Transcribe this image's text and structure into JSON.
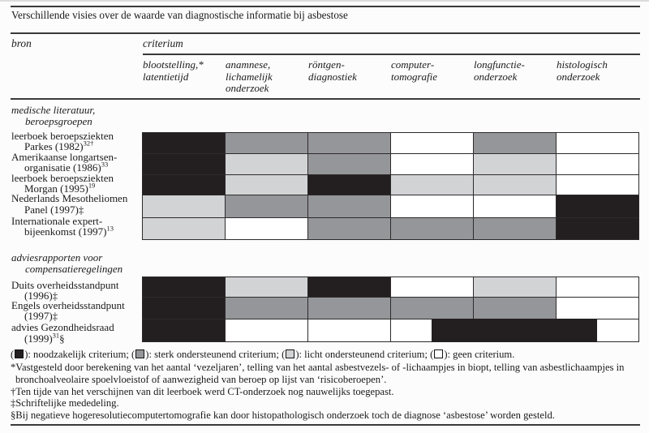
{
  "title": "Verschillende visies over de waarde van diagnostische informatie bij asbestose",
  "colors": {
    "black": "#231f20",
    "dark": "#95969a",
    "light": "#d2d3d5",
    "white": "#ffffff",
    "rule": "#3a3a3a"
  },
  "header": {
    "bron": "bron",
    "criterium": "criterium"
  },
  "table": {
    "columns": [
      {
        "lines": [
          "blootstelling,*",
          "latentietijd"
        ]
      },
      {
        "lines": [
          "anamnese,",
          "lichamelijk",
          "onderzoek"
        ]
      },
      {
        "lines": [
          "röntgen-",
          "diagnostiek"
        ]
      },
      {
        "lines": [
          "computer-",
          "tomografie"
        ]
      },
      {
        "lines": [
          "longfunctie-",
          "onderzoek"
        ]
      },
      {
        "lines": [
          "histologisch",
          "onderzoek"
        ]
      }
    ],
    "groups": [
      {
        "title_lines": [
          "medische literatuur,",
          "beroepsgroepen"
        ],
        "rows": [
          {
            "label_line1": "leerboek beroepsziekten",
            "label_line2": [
              [
                "Parkes (1982)",
                0
              ],
              [
                "32†",
                1
              ]
            ],
            "cells": [
              "black",
              "dark",
              "dark",
              "white",
              "dark",
              "white"
            ]
          },
          {
            "label_line1": "Amerikaanse longartsen-",
            "label_line2": [
              [
                "organisatie (1986)",
                0
              ],
              [
                "33",
                1
              ]
            ],
            "cells": [
              "black",
              "light",
              "dark",
              "white",
              "light",
              "white"
            ]
          },
          {
            "label_line1": "leerboek beroepsziekten",
            "label_line2": [
              [
                "Morgan (1995)",
                0
              ],
              [
                "19",
                1
              ]
            ],
            "cells": [
              "black",
              "light",
              "black",
              "light",
              "light",
              "white"
            ]
          },
          {
            "label_line1": "Nederlands Mesotheliomen",
            "label_line2": [
              [
                "Panel (1997)‡",
                0
              ]
            ],
            "cells": [
              "light",
              "dark",
              "dark",
              "white",
              "white",
              "black"
            ]
          },
          {
            "label_line1": "Internationale expert-",
            "label_line2": [
              [
                "bijeenkomst (1997)",
                0
              ],
              [
                "13",
                1
              ]
            ],
            "cells": [
              "light",
              "white",
              "dark",
              "dark",
              "dark",
              "black"
            ]
          }
        ]
      },
      {
        "title_lines": [
          "adviesrapporten voor",
          "compensatieregelingen"
        ],
        "rows": [
          {
            "label_line1": "Duits overheidsstandpunt",
            "label_line2": [
              [
                "(1996)‡",
                0
              ]
            ],
            "cells": [
              "black",
              "light",
              "black",
              "white",
              "light",
              "white"
            ]
          },
          {
            "label_line1": "Engels overheidsstandpunt",
            "label_line2": [
              [
                "(1997)‡",
                0
              ]
            ],
            "cells": [
              "black",
              "dark",
              "dark",
              "dark",
              "dark",
              "white"
            ]
          },
          {
            "label_line1": "advies Gezondheidsraad",
            "label_line2": [
              [
                "(1999)",
                0
              ],
              [
                "31",
                1
              ],
              [
                "§",
                0
              ]
            ],
            "cells": [
              "black",
              "white",
              "white",
              "white",
              "white",
              "white"
            ]
          }
        ],
        "overlay_bar": {
          "row_index": 2,
          "from_col_center": 3,
          "to_col_center": 5,
          "color": "black"
        }
      }
    ]
  },
  "legend": {
    "open": "(",
    "close": "): ",
    "separator": "; ",
    "terminator": ".",
    "items": [
      {
        "color": "black",
        "label": "noodzakelijk criterium"
      },
      {
        "color": "dark",
        "label": "sterk ondersteunend criterium"
      },
      {
        "color": "light",
        "label": "licht ondersteunend criterium"
      },
      {
        "color": "white",
        "label": "geen criterium"
      }
    ]
  },
  "footnotes": [
    {
      "marker": "*",
      "text": "Vastgesteld door berekening van het aantal ‘vezeljaren’, telling van het aantal asbestvezels- of -lichaampjes in biopt, telling van asbestlichaampjes in bronchoalveolaire spoelvloeistof of aanwezigheid van beroep op lijst van ‘risicoberoepen’."
    },
    {
      "marker": "†",
      "text": "Ten tijde van het verschijnen van dit leerboek werd CT-onderzoek nog nauwelijks toegepast."
    },
    {
      "marker": "‡",
      "text": "Schriftelijke mededeling."
    },
    {
      "marker": "§",
      "text": "Bij negatieve hogeresolutiecomputertomografie kan door histopathologisch onderzoek toch de diagnose ‘asbestose’ worden gesteld."
    }
  ]
}
